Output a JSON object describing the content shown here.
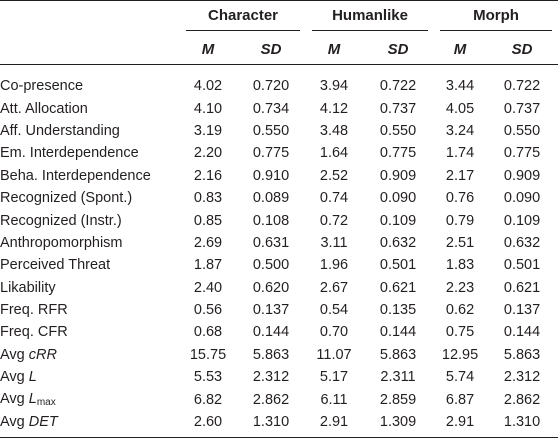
{
  "groups": {
    "character": "Character",
    "humanlike": "Humanlike",
    "morph": "Morph"
  },
  "subheaders": {
    "m": "M",
    "sd": "SD"
  },
  "rows": [
    {
      "label": "Co-presence",
      "v": [
        "4.02",
        "0.720",
        "3.94",
        "0.722",
        "3.44",
        "0.722"
      ]
    },
    {
      "label": "Att. Allocation",
      "v": [
        "4.10",
        "0.734",
        "4.12",
        "0.737",
        "4.05",
        "0.737"
      ]
    },
    {
      "label": "Aff. Understanding",
      "v": [
        "3.19",
        "0.550",
        "3.48",
        "0.550",
        "3.24",
        "0.550"
      ]
    },
    {
      "label": "Em. Interdependence",
      "v": [
        "2.20",
        "0.775",
        "1.64",
        "0.775",
        "1.74",
        "0.775"
      ]
    },
    {
      "label": "Beha. Interdependence",
      "v": [
        "2.16",
        "0.910",
        "2.52",
        "0.909",
        "2.17",
        "0.909"
      ]
    },
    {
      "label": "Recognized (Spont.)",
      "v": [
        "0.83",
        "0.089",
        "0.74",
        "0.090",
        "0.76",
        "0.090"
      ]
    },
    {
      "label": "Recognized (Instr.)",
      "v": [
        "0.85",
        "0.108",
        "0.72",
        "0.109",
        "0.79",
        "0.109"
      ]
    },
    {
      "label": "Anthropomorphism",
      "v": [
        "2.69",
        "0.631",
        "3.11",
        "0.632",
        "2.51",
        "0.632"
      ]
    },
    {
      "label": "Perceived Threat",
      "v": [
        "1.87",
        "0.500",
        "1.96",
        "0.501",
        "1.83",
        "0.501"
      ]
    },
    {
      "label": "Likability",
      "v": [
        "2.40",
        "0.620",
        "2.67",
        "0.621",
        "2.23",
        "0.621"
      ]
    },
    {
      "label": "Freq. RFR",
      "v": [
        "0.56",
        "0.137",
        "0.54",
        "0.135",
        "0.62",
        "0.137"
      ]
    },
    {
      "label": "Freq. CFR",
      "v": [
        "0.68",
        "0.144",
        "0.70",
        "0.144",
        "0.75",
        "0.144"
      ]
    },
    {
      "label_prefix": "Avg ",
      "label_italic": "cRR",
      "label_sub": "",
      "v": [
        "15.75",
        "5.863",
        "11.07",
        "5.863",
        "12.95",
        "5.863"
      ]
    },
    {
      "label_prefix": "Avg ",
      "label_italic": "L",
      "label_sub": "",
      "v": [
        "5.53",
        "2.312",
        "5.17",
        "2.311",
        "5.74",
        "2.312"
      ]
    },
    {
      "label_prefix": "Avg ",
      "label_italic": "L",
      "label_sub": "max",
      "v": [
        "6.82",
        "2.862",
        "6.11",
        "2.859",
        "6.87",
        "2.862"
      ]
    },
    {
      "label_prefix": "Avg ",
      "label_italic": "DET",
      "label_sub": "",
      "v": [
        "2.60",
        "1.310",
        "2.91",
        "1.309",
        "2.91",
        "1.310"
      ]
    }
  ]
}
